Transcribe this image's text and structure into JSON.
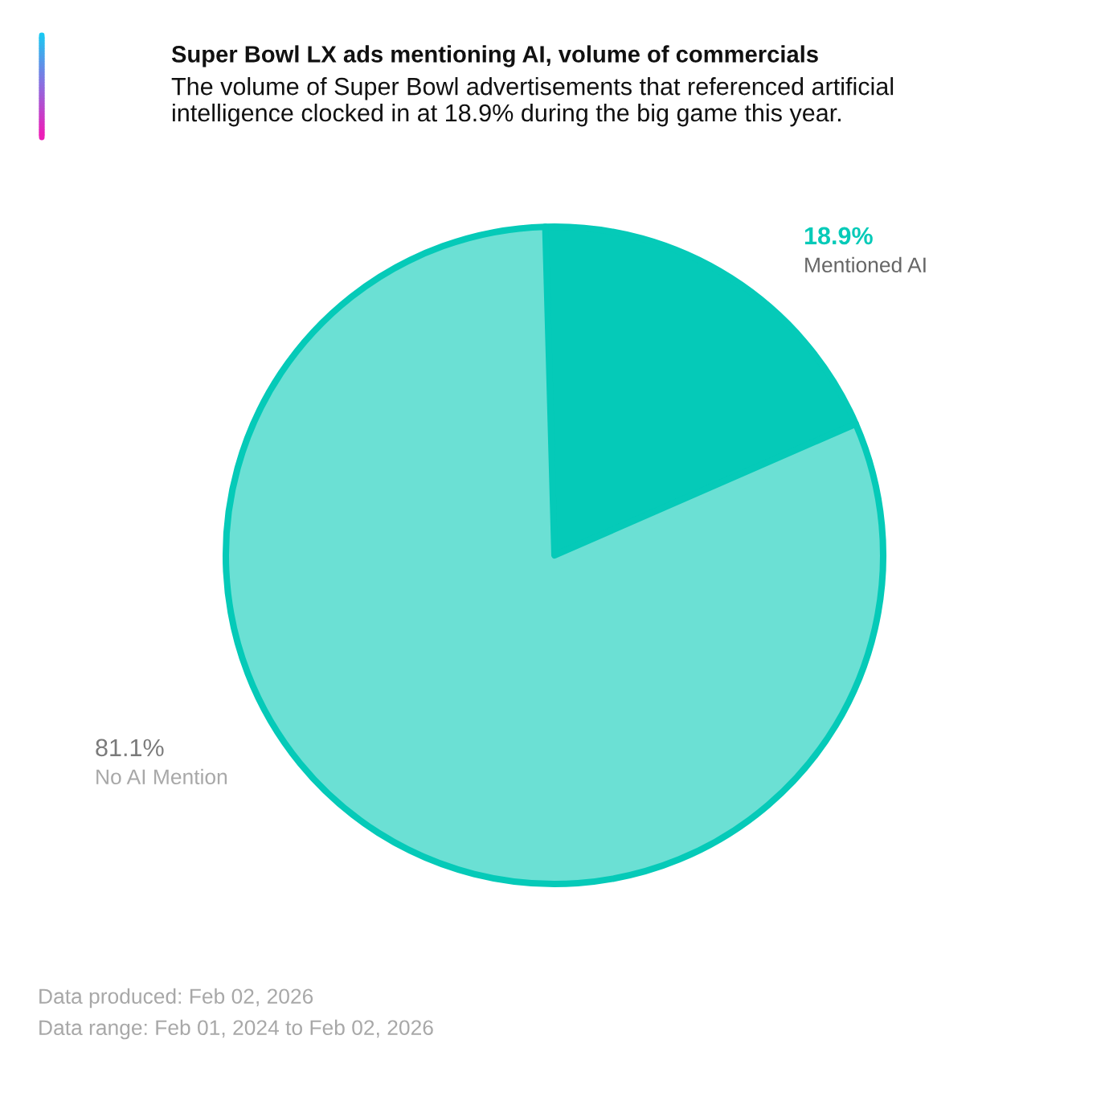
{
  "chart_data": {
    "type": "pie",
    "title": "Super Bowl LX ads mentioning AI, volume of commercials",
    "subtitle": "The volume of Super Bowl advertisements that referenced artificial intelligence clocked in at 18.9% during the big game this year.",
    "categories": [
      "Mentioned AI",
      "No AI Mention"
    ],
    "values": [
      18.9,
      81.1
    ],
    "colors": [
      "#05cab8",
      "#6be0d4"
    ],
    "value_labels": [
      "18.9%",
      "81.1%"
    ],
    "annotations": [
      "Data produced: Feb 02, 2026",
      "Data range: Feb 01, 2024 to Feb 02, 2026"
    ]
  }
}
